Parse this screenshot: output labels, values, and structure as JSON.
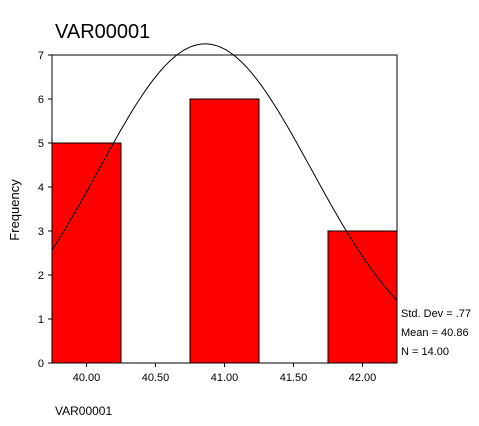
{
  "chart_data": {
    "type": "bar",
    "title": "VAR00001",
    "xlabel": "VAR00001",
    "ylabel": "Frequency",
    "categories": [
      "40.00",
      "41.00",
      "42.00"
    ],
    "x": [
      40.0,
      41.0,
      42.0
    ],
    "values": [
      5,
      6,
      3
    ],
    "xlim": [
      39.75,
      42.25
    ],
    "ylim": [
      0,
      7
    ],
    "x_ticks": [
      "40.00",
      "40.50",
      "41.00",
      "41.50",
      "42.00"
    ],
    "x_tick_values": [
      40.0,
      40.5,
      41.0,
      41.5,
      42.0
    ],
    "y_ticks": [
      "0",
      "1",
      "2",
      "3",
      "4",
      "5",
      "6",
      "7"
    ],
    "y_tick_values": [
      0,
      1,
      2,
      3,
      4,
      5,
      6,
      7
    ],
    "bar_width": 0.5,
    "normal_curve": {
      "mean": 40.86,
      "std": 0.77,
      "n": 14,
      "bin_width": 1
    },
    "stats": {
      "std_dev": "Std. Dev = .77",
      "mean": "Mean = 40.86",
      "n": "N = 14.00"
    },
    "grid": false,
    "colors": {
      "bar": "#ff0000",
      "bar_edge": "#000000",
      "curve": "#000000",
      "frame": "#000000"
    }
  }
}
